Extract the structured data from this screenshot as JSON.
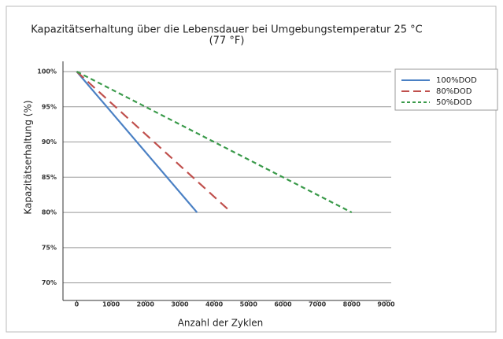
{
  "chart_data": {
    "type": "line",
    "title": "Kapazitätserhaltung über die Lebensdauer bei Umgebungstemperatur 25 °C",
    "subtitle": "(77 °F)",
    "x_label": "Anzahl der Zyklen",
    "y_label": "Kapazitätserhaltung (%)",
    "xlim": [
      -400,
      9150
    ],
    "xticks": [
      0,
      1000,
      2000,
      3000,
      4000,
      5000,
      6000,
      7000,
      8000,
      9000
    ],
    "ylim": [
      67.5,
      100
    ],
    "yticks": [
      {
        "value": 70,
        "label": "70%"
      },
      {
        "value": 75,
        "label": "75%"
      },
      {
        "value": 80,
        "label": "80%"
      },
      {
        "value": 85,
        "label": "85%"
      },
      {
        "value": 90,
        "label": "90%"
      },
      {
        "value": 95,
        "label": "95%"
      },
      {
        "value": 100,
        "label": "100%"
      }
    ],
    "grid": true,
    "legend": "right",
    "series": [
      {
        "name": "100%DOD",
        "color": "#4a80c4",
        "style": "solid",
        "x": [
          0,
          3500
        ],
        "values": [
          100,
          80
        ]
      },
      {
        "name": "80%DOD",
        "color": "#c0504d",
        "style": "dashed",
        "x": [
          0,
          4500
        ],
        "values": [
          100,
          80
        ]
      },
      {
        "name": "50%DOD",
        "color": "#3a9a4a",
        "style": "dashed",
        "x": [
          0,
          8000
        ],
        "values": [
          100,
          80
        ]
      }
    ]
  }
}
